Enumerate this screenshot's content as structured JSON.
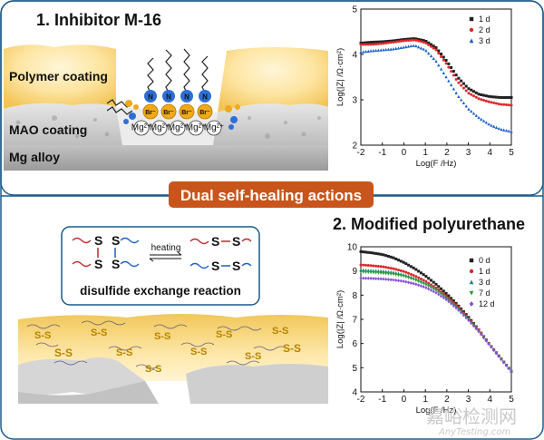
{
  "panel_top": {
    "title": "1. Inhibitor M-16",
    "labels": {
      "polymer": "Polymer coating",
      "mao": "MAO coating",
      "mg": "Mg alloy"
    },
    "ions": {
      "n": "N",
      "br": "Br⁻",
      "mg": "Mg²⁺"
    }
  },
  "center_banner": {
    "label": "Dual self-healing actions",
    "color": "#c8551b"
  },
  "panel_bottom": {
    "title": "2. Modified polyurethane",
    "reaction": {
      "s": "S",
      "arrow_label": "heating",
      "caption": "disulfide exchange reaction"
    },
    "ss_label": "S-S"
  },
  "watermark": {
    "cn": "嘉峪检测网",
    "url": "AnyTesting.com"
  },
  "chart_data": [
    {
      "type": "scatter",
      "xlabel": "Log(F /Hz)",
      "ylabel": "Log(|Z| /Ω·cm²)",
      "xlim": [
        -2,
        5
      ],
      "ylim": [
        2,
        5
      ],
      "xticks": [
        "-2",
        "-1",
        "0",
        "1",
        "2",
        "3",
        "4",
        "5"
      ],
      "yticks": [
        "2",
        "3",
        "4",
        "5"
      ],
      "legend_position": "top-right",
      "series": [
        {
          "name": "1 d",
          "marker": "square",
          "color": "#222222",
          "x": [
            -2,
            -1.5,
            -1,
            -0.5,
            0,
            0.5,
            1,
            1.5,
            2,
            2.5,
            3,
            3.5,
            4,
            4.5,
            5
          ],
          "y": [
            4.25,
            4.27,
            4.28,
            4.3,
            4.33,
            4.35,
            4.3,
            4.15,
            3.85,
            3.5,
            3.25,
            3.12,
            3.07,
            3.05,
            3.05
          ]
        },
        {
          "name": "2 d",
          "marker": "circle",
          "color": "#e0262a",
          "x": [
            -2,
            -1.5,
            -1,
            -0.5,
            0,
            0.5,
            1,
            1.5,
            2,
            2.5,
            3,
            3.5,
            4,
            4.5,
            5
          ],
          "y": [
            4.22,
            4.22,
            4.24,
            4.27,
            4.3,
            4.32,
            4.26,
            4.1,
            3.78,
            3.4,
            3.15,
            3.02,
            2.95,
            2.9,
            2.88
          ]
        },
        {
          "name": "3 d",
          "marker": "triangle",
          "color": "#1a5fc9",
          "x": [
            -2,
            -1.5,
            -1,
            -0.5,
            0,
            0.5,
            1,
            1.5,
            2,
            2.5,
            3,
            3.5,
            4,
            4.5,
            5
          ],
          "y": [
            4.05,
            4.08,
            4.1,
            4.12,
            4.16,
            4.2,
            4.1,
            3.85,
            3.48,
            3.1,
            2.8,
            2.6,
            2.45,
            2.35,
            2.3
          ]
        }
      ]
    },
    {
      "type": "scatter",
      "xlabel": "Log(F /Hz)",
      "ylabel": "Log(|Z| /Ω·cm²)",
      "xlim": [
        -2,
        5
      ],
      "ylim": [
        4,
        10
      ],
      "xticks": [
        "-2",
        "-1",
        "0",
        "1",
        "2",
        "3",
        "4",
        "5"
      ],
      "yticks": [
        "4",
        "5",
        "6",
        "7",
        "8",
        "9",
        "10"
      ],
      "legend_position": "top-right",
      "series": [
        {
          "name": "0 d",
          "marker": "square",
          "color": "#222222",
          "x": [
            -2,
            -1.5,
            -1,
            -0.5,
            0,
            0.5,
            1,
            1.5,
            2,
            2.5,
            3,
            3.5,
            4,
            4.5,
            5
          ],
          "y": [
            9.8,
            9.75,
            9.68,
            9.55,
            9.35,
            9.1,
            8.8,
            8.45,
            8.05,
            7.6,
            7.1,
            6.55,
            5.95,
            5.4,
            4.85
          ]
        },
        {
          "name": "1 d",
          "marker": "circle",
          "color": "#e0262a",
          "x": [
            -2,
            -1.5,
            -1,
            -0.5,
            0,
            0.5,
            1,
            1.5,
            2,
            2.5,
            3,
            3.5,
            4,
            4.5,
            5
          ],
          "y": [
            9.25,
            9.22,
            9.18,
            9.1,
            8.98,
            8.8,
            8.58,
            8.3,
            7.95,
            7.55,
            7.05,
            6.55,
            5.95,
            5.4,
            4.85
          ]
        },
        {
          "name": "3 d",
          "marker": "triangle",
          "color": "#1f8f6a",
          "x": [
            -2,
            -1.5,
            -1,
            -0.5,
            0,
            0.5,
            1,
            1.5,
            2,
            2.5,
            3,
            3.5,
            4,
            4.5,
            5
          ],
          "y": [
            9.05,
            9.02,
            9.0,
            8.95,
            8.85,
            8.7,
            8.5,
            8.25,
            7.9,
            7.5,
            7.03,
            6.52,
            5.95,
            5.4,
            4.85
          ]
        },
        {
          "name": "7 d",
          "marker": "triangle-down",
          "color": "#2f9a3a",
          "x": [
            -2,
            -1.5,
            -1,
            -0.5,
            0,
            0.5,
            1,
            1.5,
            2,
            2.5,
            3,
            3.5,
            4,
            4.5,
            5
          ],
          "y": [
            8.95,
            8.93,
            8.9,
            8.86,
            8.78,
            8.63,
            8.44,
            8.2,
            7.86,
            7.47,
            7.0,
            6.5,
            5.93,
            5.38,
            4.85
          ]
        },
        {
          "name": "12 d",
          "marker": "diamond",
          "color": "#8a4fd8",
          "x": [
            -2,
            -1.5,
            -1,
            -0.5,
            0,
            0.5,
            1,
            1.5,
            2,
            2.5,
            3,
            3.5,
            4,
            4.5,
            5
          ],
          "y": [
            8.7,
            8.69,
            8.67,
            8.63,
            8.57,
            8.47,
            8.32,
            8.1,
            7.8,
            7.42,
            6.97,
            6.48,
            5.92,
            5.38,
            4.85
          ]
        }
      ]
    }
  ]
}
